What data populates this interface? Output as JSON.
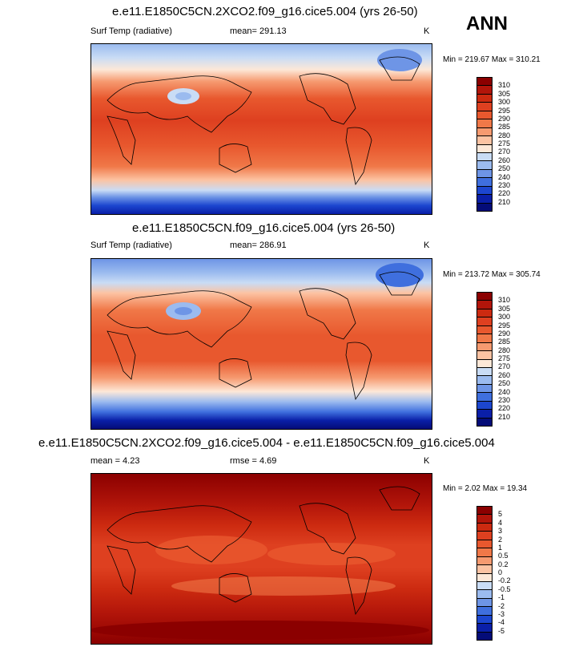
{
  "season": "ANN",
  "panels": [
    {
      "title": "e.e11.E1850C5CN.2XCO2.f09_g16.cice5.004 (yrs 26-50)",
      "variable": "Surf Temp (radiative)",
      "stat1": "mean= 291.13",
      "stat2": "",
      "units": "K",
      "minmax": "Min = 219.67 Max = 310.21",
      "scale_labels": [
        "310",
        "305",
        "300",
        "295",
        "290",
        "285",
        "280",
        "275",
        "270",
        "260",
        "250",
        "240",
        "230",
        "220",
        "210"
      ],
      "scale_colors": [
        "#8b0000",
        "#b2150a",
        "#cc2a10",
        "#de4020",
        "#e8582e",
        "#f07848",
        "#f69a70",
        "#fcc3a3",
        "#fde8d8",
        "#c9dcf5",
        "#9bbbef",
        "#6e95e6",
        "#3f6fde",
        "#1c46cf",
        "#0a1fa8",
        "#040c78"
      ]
    },
    {
      "title": "e.e11.E1850C5CN.f09_g16.cice5.004 (yrs 26-50)",
      "variable": "Surf Temp (radiative)",
      "stat1": "mean= 286.91",
      "stat2": "",
      "units": "K",
      "minmax": "Min = 213.72 Max = 305.74",
      "scale_labels": [
        "310",
        "305",
        "300",
        "295",
        "290",
        "285",
        "280",
        "275",
        "270",
        "260",
        "250",
        "240",
        "230",
        "220",
        "210"
      ],
      "scale_colors": [
        "#8b0000",
        "#b2150a",
        "#cc2a10",
        "#de4020",
        "#e8582e",
        "#f07848",
        "#f69a70",
        "#fcc3a3",
        "#fde8d8",
        "#c9dcf5",
        "#9bbbef",
        "#6e95e6",
        "#3f6fde",
        "#1c46cf",
        "#0a1fa8",
        "#040c78"
      ]
    },
    {
      "title": "e.e11.E1850C5CN.2XCO2.f09_g16.cice5.004 - e.e11.E1850C5CN.f09_g16.cice5.004",
      "variable": "",
      "stat1": "mean =   4.23",
      "stat2": "rmse =   4.69",
      "units": "K",
      "minmax": "Min =  2.02 Max = 19.34",
      "scale_labels": [
        "5",
        "4",
        "3",
        "2",
        "1",
        "0.5",
        "0.2",
        "0",
        "-0.2",
        "-0.5",
        "-1",
        "-2",
        "-3",
        "-4",
        "-5"
      ],
      "scale_colors": [
        "#8b0000",
        "#b2150a",
        "#cc2a10",
        "#de4020",
        "#e8582e",
        "#f07848",
        "#f69a70",
        "#fcc3a3",
        "#fde8d8",
        "#c9dcf5",
        "#9bbbef",
        "#6e95e6",
        "#3f6fde",
        "#1c46cf",
        "#0a1fa8",
        "#040c78"
      ]
    }
  ]
}
